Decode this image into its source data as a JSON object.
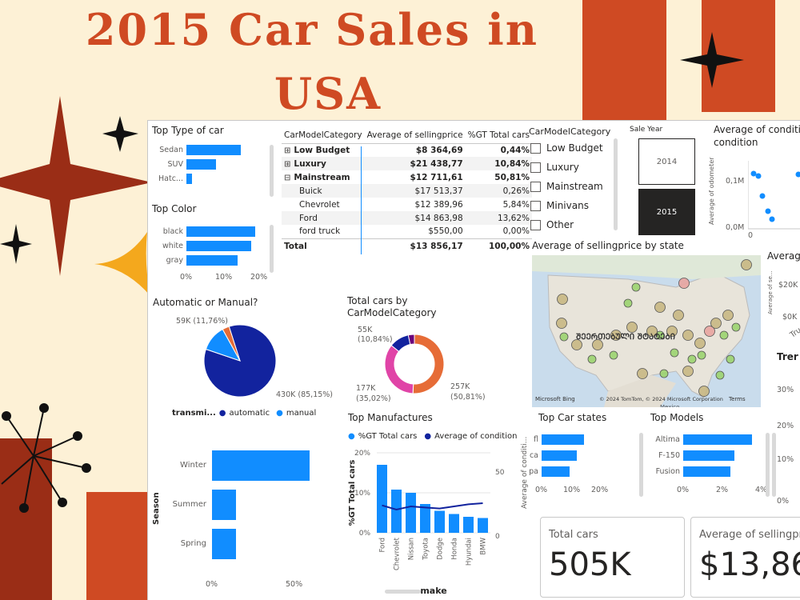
{
  "page": {
    "title_line1": "2015 Car Sales in",
    "title_line2": "USA"
  },
  "colors": {
    "accent": "#118dff",
    "dark": "#12239e",
    "orange": "#e66c37",
    "pink": "#e044a7",
    "title": "#cf4a23"
  },
  "top_type": {
    "title": "Top Type of car",
    "categories": [
      "Sedan",
      "SUV",
      "Hatc..."
    ],
    "values": [
      0.62,
      0.34,
      0.06
    ]
  },
  "top_color": {
    "title": "Top Color",
    "categories": [
      "black",
      "white",
      "gray"
    ],
    "values": [
      19.5,
      18.5,
      14.5
    ],
    "ticks": [
      "0%",
      "10%",
      "20%"
    ]
  },
  "matrix": {
    "headers": [
      "CarModelCategory",
      "Average of sellingprice",
      "%GT Total cars"
    ],
    "rows": [
      {
        "name": "Low Budget",
        "sign": "⊞",
        "price": "$8 364,69",
        "pct": "0,44%",
        "bold": true
      },
      {
        "name": "Luxury",
        "sign": "⊞",
        "price": "$21 438,77",
        "pct": "10,84%",
        "bold": true
      },
      {
        "name": "Mainstream",
        "sign": "⊟",
        "price": "$12 711,61",
        "pct": "50,81%",
        "bold": true
      },
      {
        "name": "Buick",
        "sign": "",
        "price": "$17 513,37",
        "pct": "0,26%",
        "bold": false
      },
      {
        "name": "Chevrolet",
        "sign": "",
        "price": "$12 389,96",
        "pct": "5,84%",
        "bold": false
      },
      {
        "name": "Ford",
        "sign": "",
        "price": "$14 863,98",
        "pct": "13,62%",
        "bold": false
      },
      {
        "name": "ford truck",
        "sign": "",
        "price": "$550,00",
        "pct": "0,00%",
        "bold": false
      }
    ],
    "total": {
      "name": "Total",
      "price": "$13 856,17",
      "pct": "100,00%"
    }
  },
  "slicer": {
    "title": "CarModelCategory",
    "items": [
      "Low Budget",
      "Luxury",
      "Mainstream",
      "Minivans",
      "Other"
    ]
  },
  "year": {
    "title": "Sale Year",
    "items": [
      "2014",
      "2015"
    ],
    "selected": "2015"
  },
  "scatter": {
    "title": "Average of condition",
    "subtitle": "condition",
    "ylabel": "Average of odometer",
    "yticks": [
      "0,1M",
      "0,0M"
    ],
    "xtick": "0"
  },
  "auto": {
    "title": "Automatic or Manual?",
    "legend_title": "transmi...",
    "legend": [
      "automatic",
      "manual"
    ],
    "label_manual": "59K (11,76%)",
    "label_auto": "430K (85,15%)",
    "values": [
      85.15,
      11.76,
      3.09
    ]
  },
  "donut": {
    "title": "Total cars by CarModelCategory",
    "labels": [
      "55K (10,84%)",
      "177K (35,02%)",
      "257K (50,81%)"
    ]
  },
  "map": {
    "title": "Average of sellingprice by state",
    "overlay": "ᲨᲔᲔᲠᲗᲔᲑᲣᲚᲘ ᲨᲢᲐᲢᲔᲑᲘ",
    "credit1": "Microsoft Bing",
    "credit2": "© 2024 TomTom, © 2024 Microsoft Corporation",
    "terms": "Terms",
    "mexico": "Mexico"
  },
  "season": {
    "ylabel": "Season",
    "categories": [
      "Winter",
      "Summer",
      "Spring"
    ],
    "values": [
      65,
      16,
      16
    ],
    "ticks": [
      "0%",
      "50%"
    ]
  },
  "manuf": {
    "title": "Top Manufactures",
    "legend": [
      "%GT Total cars",
      "Average of condition"
    ],
    "categories": [
      "Ford",
      "Chevrolet",
      "Nissan",
      "Toyota",
      "Dodge",
      "Honda",
      "Hyundai",
      "BMW"
    ],
    "values": [
      17.0,
      10.8,
      10.0,
      7.2,
      5.5,
      4.7,
      4.0,
      3.7
    ],
    "line": [
      31,
      27,
      30,
      29,
      28,
      30,
      32,
      33
    ],
    "ylabel": "%GT Total cars",
    "y2label": "Average of conditi...",
    "xlabel": "make",
    "yticks": [
      "20%",
      "10%",
      "0%"
    ],
    "y2ticks": [
      "50",
      "0"
    ]
  },
  "states": {
    "title": "Top Car states",
    "categories": [
      "fl",
      "ca",
      "pa"
    ],
    "values": [
      15,
      12.5,
      10
    ],
    "ticks": [
      "0%",
      "10%",
      "20%"
    ]
  },
  "models": {
    "title": "Top Models",
    "categories": [
      "Altima",
      "F-150",
      "Fusion"
    ],
    "values": [
      3.5,
      2.6,
      2.4
    ],
    "ticks": [
      "0%",
      "2%",
      "4%"
    ]
  },
  "card1": {
    "title": "Total cars",
    "value": "505K"
  },
  "card2": {
    "title": "Average of sellingprice",
    "value": "$13,86"
  },
  "right_partial": {
    "avg_title": "Averag",
    "ylabel": "Average of se...",
    "ticks": [
      "$20K",
      "$0K"
    ],
    "xt": "Truc",
    "trend_title": "Trer",
    "trend_ticks": [
      "30%",
      "20%",
      "10%",
      "0%"
    ]
  }
}
